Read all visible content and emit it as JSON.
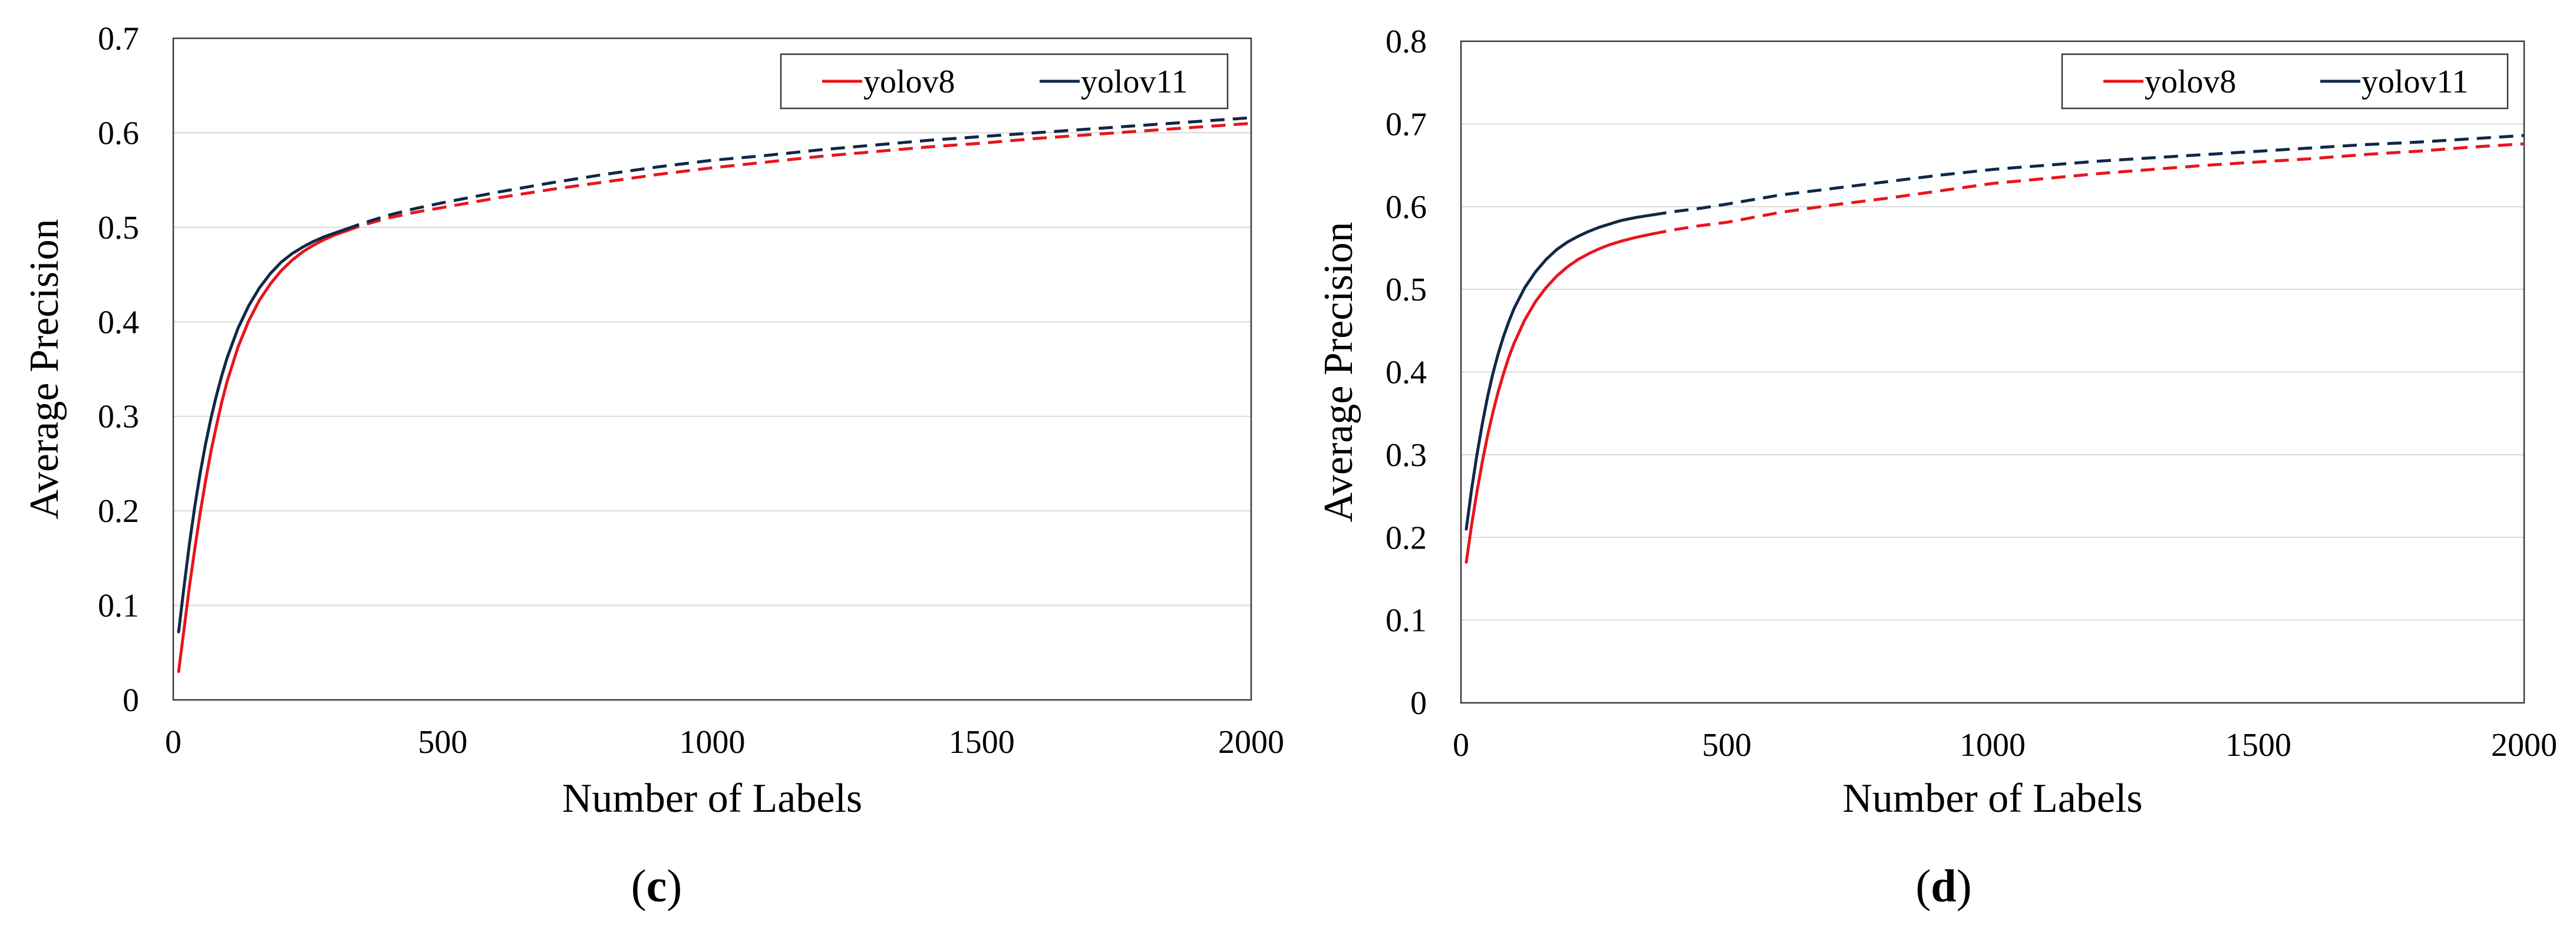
{
  "chart_data": [
    {
      "type": "line",
      "panel": "c",
      "caption_open": "(",
      "caption_letter": "c",
      "caption_close": ")",
      "xlabel": "Number of Labels",
      "ylabel": "Average Precision",
      "xlim": [
        0,
        2000
      ],
      "ylim": [
        0,
        0.7
      ],
      "xticks": [
        0,
        500,
        1000,
        1500,
        2000
      ],
      "xtick_labels": [
        "0",
        "500",
        "1000",
        "1500",
        "2000"
      ],
      "yticks": [
        0,
        0.1,
        0.2,
        0.3,
        0.4,
        0.5,
        0.6,
        0.7
      ],
      "ytick_labels": [
        "0",
        "0.1",
        "0.2",
        "0.3",
        "0.4",
        "0.5",
        "0.6",
        "0.7"
      ],
      "grid": "horizontal",
      "legend_position": "top-right",
      "dash_after_x": 320,
      "series": [
        {
          "name": "yolov8",
          "color": "#e8151b",
          "x": [
            10,
            20,
            30,
            40,
            50,
            60,
            70,
            80,
            90,
            100,
            120,
            140,
            160,
            180,
            200,
            220,
            240,
            260,
            280,
            300,
            320,
            350,
            400,
            450,
            500,
            600,
            700,
            800,
            900,
            1000,
            1100,
            1200,
            1300,
            1400,
            1500,
            1600,
            1700,
            1800,
            1900,
            2000
          ],
          "y": [
            0.03,
            0.075,
            0.12,
            0.16,
            0.198,
            0.232,
            0.263,
            0.29,
            0.315,
            0.337,
            0.373,
            0.401,
            0.423,
            0.44,
            0.454,
            0.465,
            0.474,
            0.481,
            0.487,
            0.492,
            0.496,
            0.502,
            0.51,
            0.516,
            0.521,
            0.531,
            0.54,
            0.548,
            0.556,
            0.563,
            0.569,
            0.575,
            0.58,
            0.585,
            0.589,
            0.594,
            0.598,
            0.602,
            0.606,
            0.61
          ]
        },
        {
          "name": "yolov11",
          "color": "#0f2847",
          "x": [
            10,
            20,
            30,
            40,
            50,
            60,
            70,
            80,
            90,
            100,
            120,
            140,
            160,
            180,
            200,
            220,
            240,
            260,
            280,
            300,
            320,
            350,
            400,
            450,
            500,
            600,
            700,
            800,
            900,
            1000,
            1100,
            1200,
            1300,
            1400,
            1500,
            1600,
            1700,
            1800,
            1900,
            2000
          ],
          "y": [
            0.072,
            0.12,
            0.165,
            0.205,
            0.24,
            0.271,
            0.298,
            0.322,
            0.343,
            0.362,
            0.393,
            0.417,
            0.436,
            0.451,
            0.463,
            0.472,
            0.479,
            0.485,
            0.49,
            0.494,
            0.498,
            0.504,
            0.513,
            0.52,
            0.526,
            0.537,
            0.547,
            0.556,
            0.564,
            0.571,
            0.576,
            0.582,
            0.587,
            0.592,
            0.596,
            0.6,
            0.604,
            0.608,
            0.612,
            0.616
          ]
        }
      ]
    },
    {
      "type": "line",
      "panel": "d",
      "caption_open": "(",
      "caption_letter": "d",
      "caption_close": ")",
      "xlabel": "Number of Labels",
      "ylabel": "Average Precision",
      "xlim": [
        0,
        2000
      ],
      "ylim": [
        0,
        0.8
      ],
      "xticks": [
        0,
        500,
        1000,
        1500,
        2000
      ],
      "xtick_labels": [
        "0",
        "500",
        "1000",
        "1500",
        "2000"
      ],
      "yticks": [
        0,
        0.1,
        0.2,
        0.3,
        0.4,
        0.5,
        0.6,
        0.7,
        0.8
      ],
      "ytick_labels": [
        "0",
        "0.1",
        "0.2",
        "0.3",
        "0.4",
        "0.5",
        "0.6",
        "0.7",
        "0.8"
      ],
      "grid": "horizontal",
      "legend_position": "top-right",
      "dash_after_x": 360,
      "series": [
        {
          "name": "yolov8",
          "color": "#e8151b",
          "x": [
            10,
            20,
            30,
            40,
            50,
            60,
            70,
            80,
            90,
            100,
            120,
            140,
            160,
            180,
            200,
            220,
            240,
            260,
            280,
            300,
            330,
            360,
            400,
            450,
            500,
            600,
            700,
            800,
            900,
            1000,
            1100,
            1200,
            1300,
            1400,
            1500,
            1600,
            1700,
            1800,
            1900,
            2000
          ],
          "y": [
            0.17,
            0.215,
            0.255,
            0.291,
            0.323,
            0.351,
            0.376,
            0.398,
            0.418,
            0.435,
            0.463,
            0.485,
            0.502,
            0.516,
            0.527,
            0.536,
            0.543,
            0.549,
            0.554,
            0.558,
            0.563,
            0.567,
            0.572,
            0.577,
            0.581,
            0.593,
            0.602,
            0.61,
            0.619,
            0.628,
            0.634,
            0.64,
            0.645,
            0.65,
            0.654,
            0.658,
            0.663,
            0.667,
            0.672,
            0.676
          ]
        },
        {
          "name": "yolov11",
          "color": "#0f2847",
          "x": [
            10,
            20,
            30,
            40,
            50,
            60,
            70,
            80,
            90,
            100,
            120,
            140,
            160,
            180,
            200,
            220,
            240,
            260,
            280,
            300,
            330,
            360,
            400,
            450,
            500,
            600,
            700,
            800,
            900,
            1000,
            1100,
            1200,
            1300,
            1400,
            1500,
            1600,
            1700,
            1800,
            1900,
            2000
          ],
          "y": [
            0.21,
            0.258,
            0.3,
            0.337,
            0.37,
            0.398,
            0.422,
            0.443,
            0.461,
            0.477,
            0.502,
            0.521,
            0.536,
            0.548,
            0.557,
            0.564,
            0.57,
            0.575,
            0.579,
            0.583,
            0.587,
            0.59,
            0.594,
            0.598,
            0.603,
            0.614,
            0.622,
            0.63,
            0.638,
            0.645,
            0.65,
            0.655,
            0.659,
            0.663,
            0.667,
            0.671,
            0.675,
            0.678,
            0.682,
            0.686
          ]
        }
      ]
    }
  ]
}
